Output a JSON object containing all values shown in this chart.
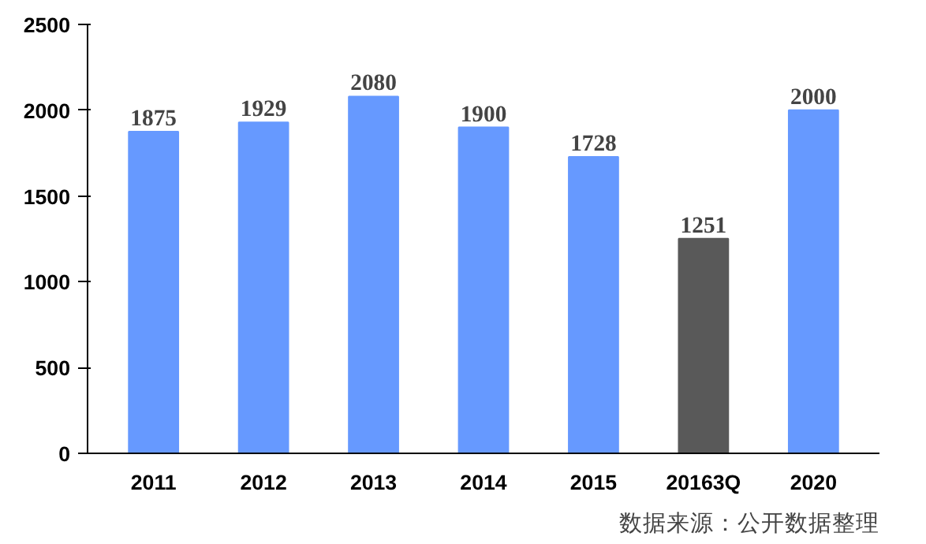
{
  "chart_data": {
    "type": "bar",
    "categories": [
      "2011",
      "2012",
      "2013",
      "2014",
      "2015",
      "20163Q",
      "2020"
    ],
    "values": [
      1875,
      1929,
      2080,
      1900,
      1728,
      1251,
      2000
    ],
    "colors": [
      "#6699ff",
      "#6699ff",
      "#6699ff",
      "#6699ff",
      "#6699ff",
      "#595959",
      "#6699ff"
    ],
    "ylim": [
      0,
      2500
    ],
    "yticks": [
      0,
      500,
      1000,
      1500,
      2000,
      2500
    ],
    "grid": false,
    "data_labels": true,
    "annotations": [
      "数据来源：公开数据整理"
    ]
  }
}
